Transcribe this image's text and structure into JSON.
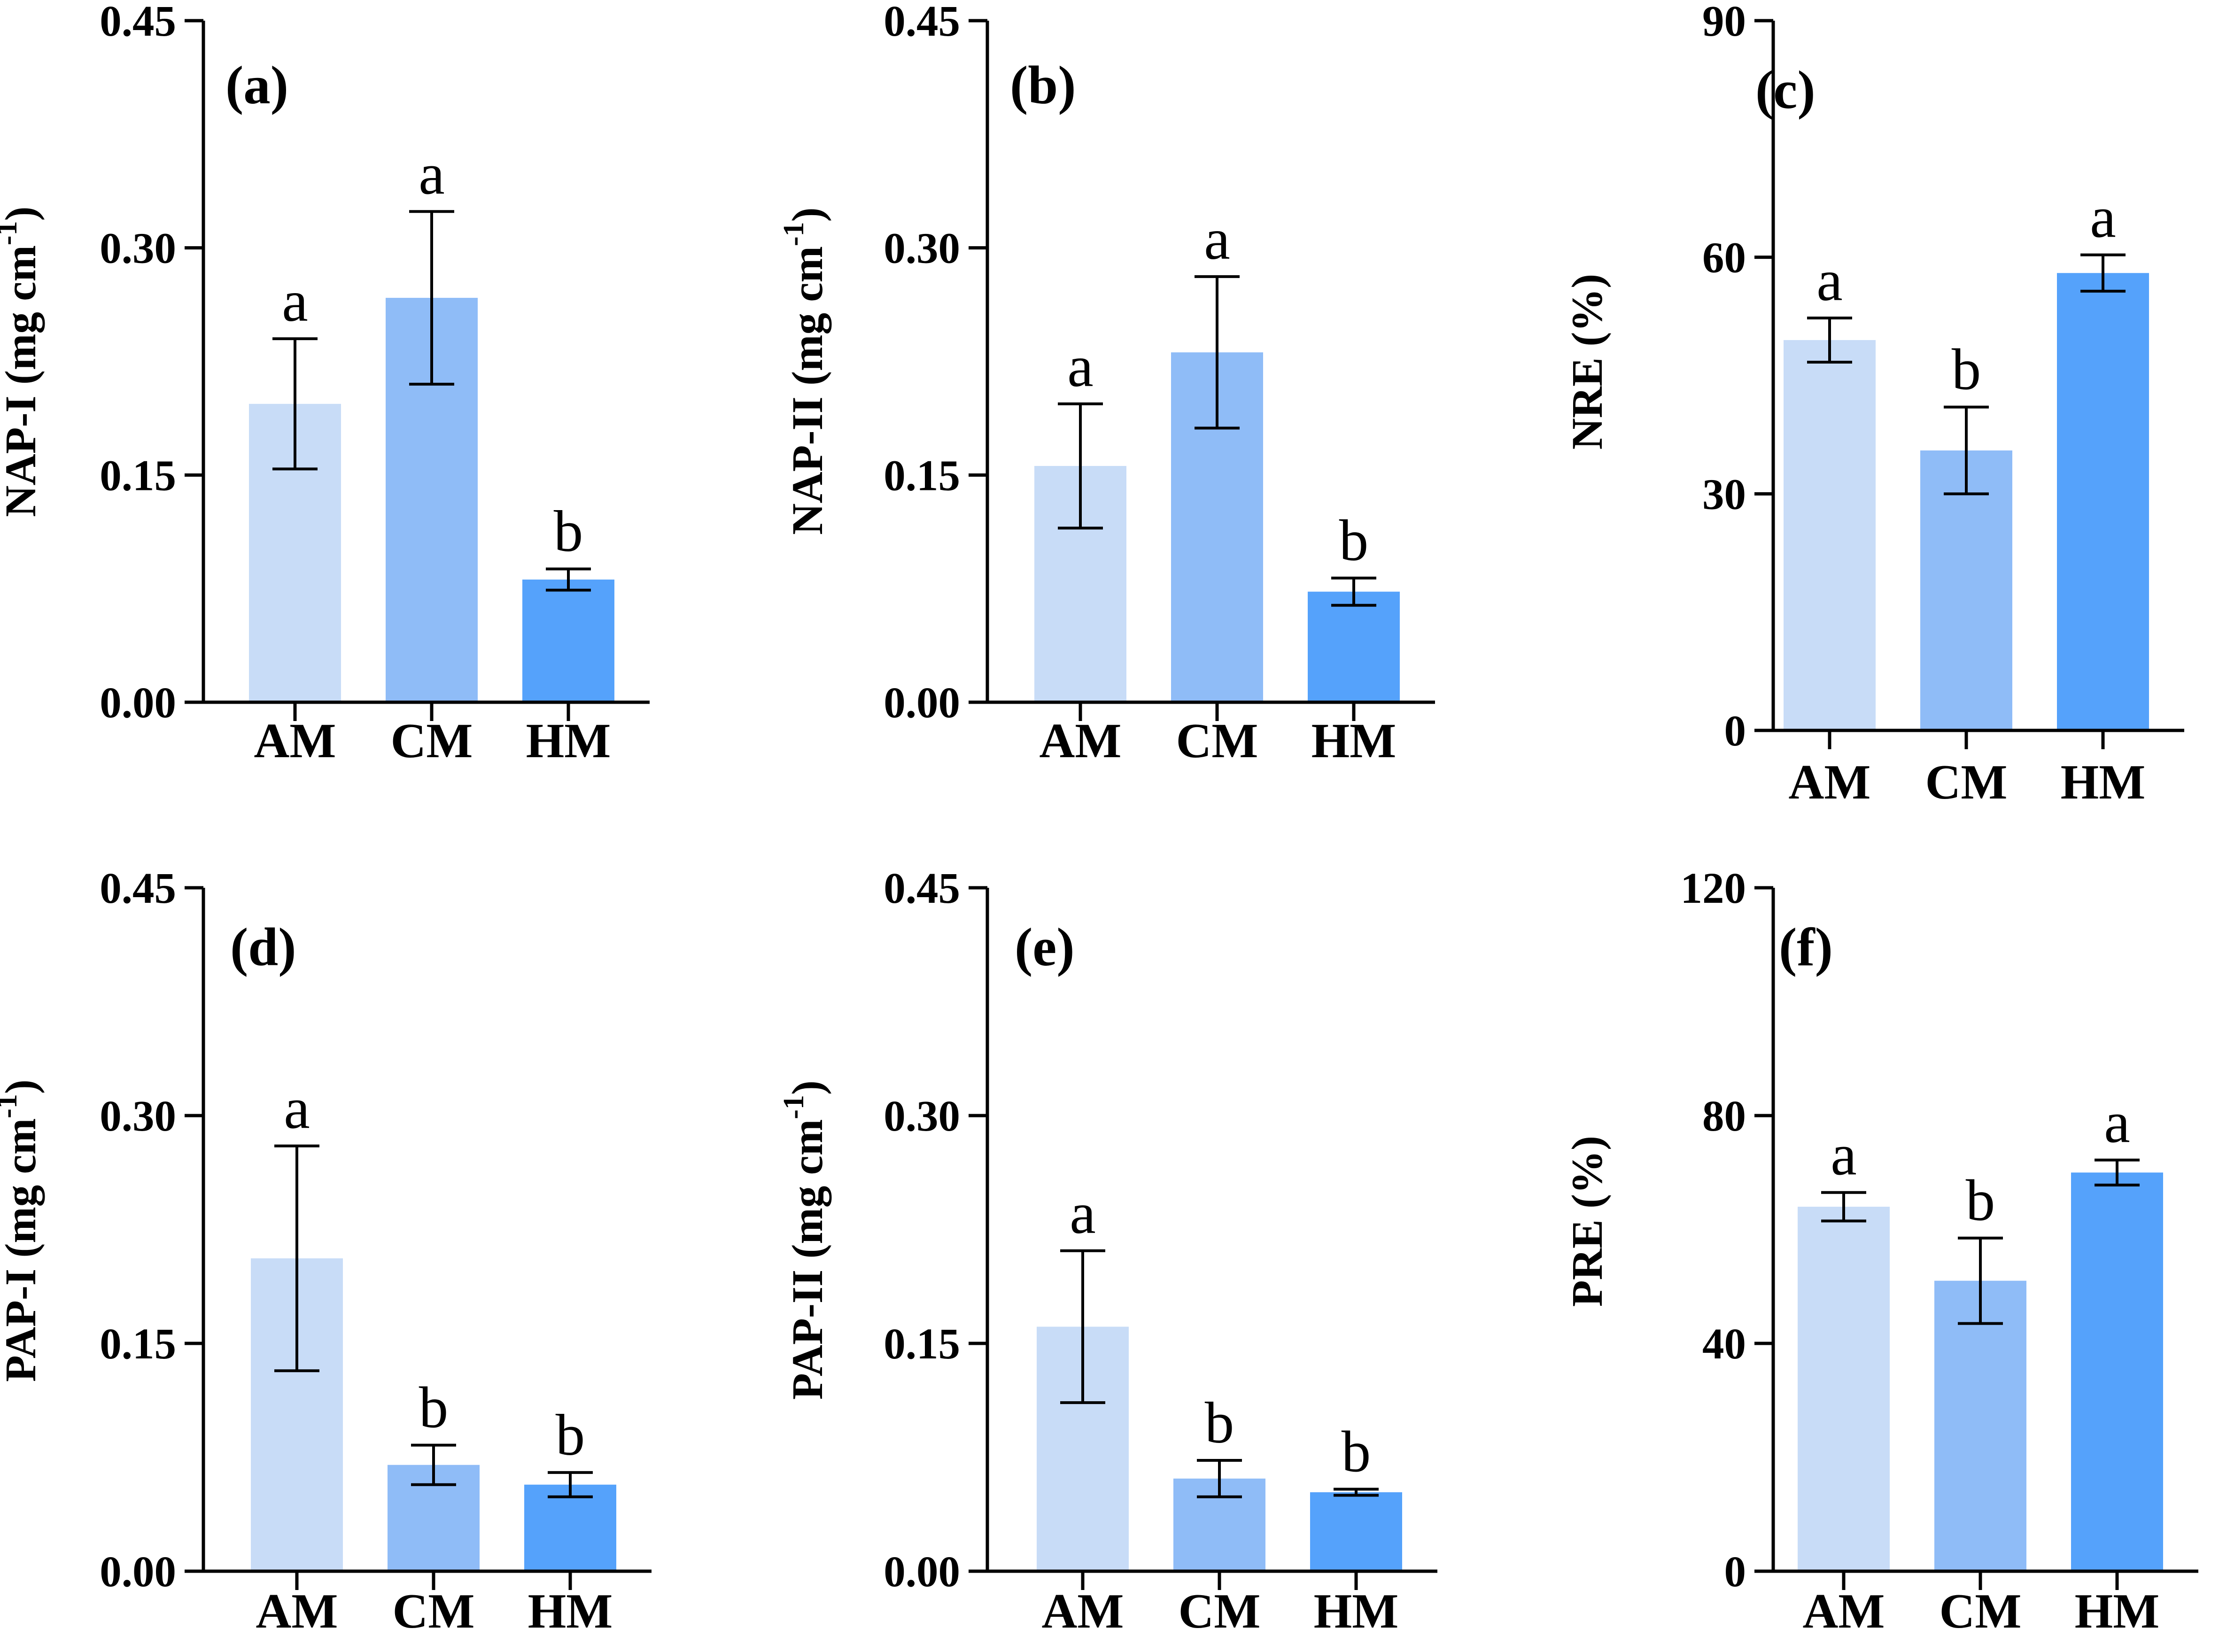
{
  "figure": {
    "title": ""
  },
  "colors": {
    "AM": "#c8dcf7",
    "CM": "#8fbcf7",
    "HM": "#55a2fb",
    "axis": "#000000"
  },
  "chart_data": [
    {
      "type": "bar",
      "panel": "(a)",
      "ylabel": "NAP-I (mg cm",
      "ylabel_sup": "-1",
      "ylabel_end": ")",
      "categories": [
        "AM",
        "CM",
        "HM"
      ],
      "values": [
        0.197,
        0.267,
        0.081
      ],
      "errors": [
        0.043,
        0.057,
        0.007
      ],
      "letters": [
        "a",
        "a",
        "b"
      ],
      "ylim": [
        0,
        0.45
      ],
      "yticks": [
        "0.00",
        "0.15",
        "0.30",
        "0.45"
      ]
    },
    {
      "type": "bar",
      "panel": "(b)",
      "ylabel": "NAP-II (mg cm",
      "ylabel_sup": "-1",
      "ylabel_end": ")",
      "categories": [
        "AM",
        "CM",
        "HM"
      ],
      "values": [
        0.156,
        0.231,
        0.073
      ],
      "errors": [
        0.041,
        0.05,
        0.009
      ],
      "letters": [
        "a",
        "a",
        "b"
      ],
      "ylim": [
        0,
        0.45
      ],
      "yticks": [
        "0.00",
        "0.15",
        "0.30",
        "0.45"
      ]
    },
    {
      "type": "bar",
      "panel": "(c)",
      "ylabel": "NRE (%)",
      "ylabel_sup": "",
      "ylabel_end": "",
      "categories": [
        "AM",
        "CM",
        "HM"
      ],
      "values": [
        49.5,
        35.5,
        58.0
      ],
      "errors": [
        2.8,
        5.5,
        2.3
      ],
      "letters": [
        "a",
        "b",
        "a"
      ],
      "ylim": [
        0,
        90
      ],
      "yticks": [
        "0",
        "30",
        "60",
        "90"
      ]
    },
    {
      "type": "bar",
      "panel": "(d)",
      "ylabel": "PAP-I (mg cm",
      "ylabel_sup": "-1",
      "ylabel_end": ")",
      "categories": [
        "AM",
        "CM",
        "HM"
      ],
      "values": [
        0.206,
        0.07,
        0.057
      ],
      "errors": [
        0.074,
        0.013,
        0.008
      ],
      "letters": [
        "a",
        "b",
        "b"
      ],
      "ylim": [
        0,
        0.45
      ],
      "yticks": [
        "0.00",
        "0.15",
        "0.30",
        "0.45"
      ]
    },
    {
      "type": "bar",
      "panel": "(e)",
      "ylabel": "PAP-II (mg cm",
      "ylabel_sup": "-1",
      "ylabel_end": ")",
      "categories": [
        "AM",
        "CM",
        "HM"
      ],
      "values": [
        0.161,
        0.061,
        0.052
      ],
      "errors": [
        0.05,
        0.012,
        0.002
      ],
      "letters": [
        "a",
        "b",
        "b"
      ],
      "ylim": [
        0,
        0.45
      ],
      "yticks": [
        "0.00",
        "0.15",
        "0.30",
        "0.45"
      ]
    },
    {
      "type": "bar",
      "panel": "(f)",
      "ylabel": "PRE (%)",
      "ylabel_sup": "",
      "ylabel_end": "",
      "categories": [
        "AM",
        "CM",
        "HM"
      ],
      "values": [
        64.0,
        51.0,
        70.0
      ],
      "errors": [
        2.5,
        7.5,
        2.2
      ],
      "letters": [
        "a",
        "b",
        "a"
      ],
      "ylim": [
        0,
        120
      ],
      "yticks": [
        "0",
        "40",
        "80",
        "120"
      ]
    }
  ]
}
